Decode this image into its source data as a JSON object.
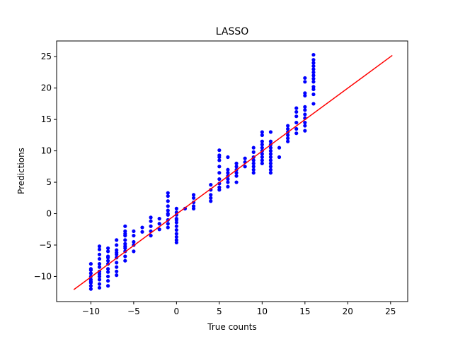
{
  "chart_data": {
    "type": "scatter",
    "title": "LASSO",
    "xlabel": "True counts",
    "ylabel": "Predictions",
    "xlim": [
      -14,
      27
    ],
    "ylim": [
      -14,
      27.5
    ],
    "x_ticks": [
      -10,
      -5,
      0,
      5,
      10,
      15,
      20,
      25
    ],
    "y_ticks": [
      -10,
      -5,
      0,
      5,
      10,
      15,
      20,
      25
    ],
    "x_tick_labels": [
      "−10",
      "−5",
      "0",
      "5",
      "10",
      "15",
      "20",
      "25"
    ],
    "y_tick_labels": [
      "−10",
      "−5",
      "0",
      "5",
      "10",
      "15",
      "20",
      "25"
    ],
    "grid": false,
    "colors": {
      "points": "#0000ff",
      "line": "#ff0000"
    },
    "reference_line": {
      "x": [
        -12,
        25.2
      ],
      "y": [
        -12.1,
        25.2
      ]
    },
    "points": [
      [
        -10,
        -8.0
      ],
      [
        -10,
        -8.8
      ],
      [
        -10,
        -9.5
      ],
      [
        -10,
        -10.0
      ],
      [
        -10,
        -10.5
      ],
      [
        -10,
        -11.0
      ],
      [
        -10,
        -11.5
      ],
      [
        -10,
        -12.0
      ],
      [
        -10,
        -9.0
      ],
      [
        -10,
        -10.8
      ],
      [
        -9,
        -5.2
      ],
      [
        -9,
        -5.7
      ],
      [
        -9,
        -6.5
      ],
      [
        -9,
        -7.2
      ],
      [
        -9,
        -8.0
      ],
      [
        -9,
        -8.5
      ],
      [
        -9,
        -9.2
      ],
      [
        -9,
        -10.0
      ],
      [
        -9,
        -10.5
      ],
      [
        -9,
        -11.2
      ],
      [
        -9,
        -11.8
      ],
      [
        -9,
        -9.6
      ],
      [
        -8,
        -5.5
      ],
      [
        -8,
        -6.0
      ],
      [
        -8,
        -6.8
      ],
      [
        -8,
        -7.5
      ],
      [
        -8,
        -8.0
      ],
      [
        -8,
        -8.8
      ],
      [
        -8,
        -9.3
      ],
      [
        -8,
        -10.0
      ],
      [
        -8,
        -10.7
      ],
      [
        -8,
        -11.5
      ],
      [
        -8,
        -7.0
      ],
      [
        -7,
        -4.2
      ],
      [
        -7,
        -5.0
      ],
      [
        -7,
        -5.8
      ],
      [
        -7,
        -6.5
      ],
      [
        -7,
        -7.0
      ],
      [
        -7,
        -7.8
      ],
      [
        -7,
        -8.5
      ],
      [
        -7,
        -9.2
      ],
      [
        -7,
        -9.8
      ],
      [
        -7,
        -6.2
      ],
      [
        -6,
        -2.0
      ],
      [
        -6,
        -2.8
      ],
      [
        -6,
        -3.5
      ],
      [
        -6,
        -4.2
      ],
      [
        -6,
        -4.8
      ],
      [
        -6,
        -5.5
      ],
      [
        -6,
        -6.0
      ],
      [
        -6,
        -6.8
      ],
      [
        -6,
        -7.5
      ],
      [
        -6,
        -3.2
      ],
      [
        -6,
        -5.2
      ],
      [
        -5,
        -2.8
      ],
      [
        -5,
        -3.5
      ],
      [
        -5,
        -4.5
      ],
      [
        -5,
        -5.0
      ],
      [
        -5,
        -6.0
      ],
      [
        -4,
        -2.2
      ],
      [
        -4,
        -2.9
      ],
      [
        -3,
        -0.6
      ],
      [
        -3,
        -1.2
      ],
      [
        -3,
        -2.0
      ],
      [
        -3,
        -2.8
      ],
      [
        -3,
        -3.5
      ],
      [
        -2,
        -0.8
      ],
      [
        -2,
        -1.6
      ],
      [
        -2,
        -2.5
      ],
      [
        -1,
        3.3
      ],
      [
        -1,
        2.8
      ],
      [
        -1,
        2.0
      ],
      [
        -1,
        1.2
      ],
      [
        -1,
        0.5
      ],
      [
        -1,
        -0.2
      ],
      [
        -1,
        -1.0
      ],
      [
        -1,
        -1.6
      ],
      [
        -1,
        -2.2
      ],
      [
        -1,
        0.0
      ],
      [
        0,
        0.8
      ],
      [
        0,
        0.2
      ],
      [
        0,
        -0.2
      ],
      [
        0,
        -0.8
      ],
      [
        0,
        -1.4
      ],
      [
        0,
        -2.0
      ],
      [
        0,
        -2.6
      ],
      [
        0,
        -3.2
      ],
      [
        0,
        -3.7
      ],
      [
        0,
        -4.2
      ],
      [
        0,
        -4.6
      ],
      [
        0,
        -1.0
      ],
      [
        1,
        0.8
      ],
      [
        2,
        3.0
      ],
      [
        2,
        2.5
      ],
      [
        2,
        1.8
      ],
      [
        2,
        1.2
      ],
      [
        2,
        0.8
      ],
      [
        4,
        4.6
      ],
      [
        4,
        3.8
      ],
      [
        4,
        3.0
      ],
      [
        4,
        2.5
      ],
      [
        4,
        2.0
      ],
      [
        5,
        10.1
      ],
      [
        5,
        9.3
      ],
      [
        5,
        8.5
      ],
      [
        5,
        7.5
      ],
      [
        5,
        6.5
      ],
      [
        5,
        5.5
      ],
      [
        5,
        4.8
      ],
      [
        5,
        4.2
      ],
      [
        5,
        3.8
      ],
      [
        5,
        9.0
      ],
      [
        6,
        9.0
      ],
      [
        6,
        7.0
      ],
      [
        6,
        6.5
      ],
      [
        6,
        6.0
      ],
      [
        6,
        5.5
      ],
      [
        6,
        5.0
      ],
      [
        6,
        4.3
      ],
      [
        7,
        8.0
      ],
      [
        7,
        7.5
      ],
      [
        7,
        7.0
      ],
      [
        7,
        6.5
      ],
      [
        7,
        6.0
      ],
      [
        7,
        5.0
      ],
      [
        8,
        8.8
      ],
      [
        8,
        8.2
      ],
      [
        8,
        7.5
      ],
      [
        9,
        10.5
      ],
      [
        9,
        9.8
      ],
      [
        9,
        9.0
      ],
      [
        9,
        8.5
      ],
      [
        9,
        8.0
      ],
      [
        9,
        7.5
      ],
      [
        9,
        7.0
      ],
      [
        9,
        6.5
      ],
      [
        10,
        13.0
      ],
      [
        10,
        12.5
      ],
      [
        10,
        11.5
      ],
      [
        10,
        11.0
      ],
      [
        10,
        10.5
      ],
      [
        10,
        10.0
      ],
      [
        10,
        9.5
      ],
      [
        10,
        9.0
      ],
      [
        10,
        8.5
      ],
      [
        10,
        8.0
      ],
      [
        11,
        13.0
      ],
      [
        11,
        11.5
      ],
      [
        11,
        11.0
      ],
      [
        11,
        10.5
      ],
      [
        11,
        10.0
      ],
      [
        11,
        9.5
      ],
      [
        11,
        9.0
      ],
      [
        11,
        8.5
      ],
      [
        11,
        8.0
      ],
      [
        11,
        7.5
      ],
      [
        11,
        7.0
      ],
      [
        11,
        6.5
      ],
      [
        12,
        10.5
      ],
      [
        12,
        9.0
      ],
      [
        13,
        14.0
      ],
      [
        13,
        13.5
      ],
      [
        13,
        13.0
      ],
      [
        13,
        12.5
      ],
      [
        13,
        12.0
      ],
      [
        13,
        11.5
      ],
      [
        14,
        16.8
      ],
      [
        14,
        16.2
      ],
      [
        14,
        15.5
      ],
      [
        14,
        14.5
      ],
      [
        14,
        13.5
      ],
      [
        14,
        12.8
      ],
      [
        15,
        21.6
      ],
      [
        15,
        21.0
      ],
      [
        15,
        19.2
      ],
      [
        15,
        18.8
      ],
      [
        15,
        17.0
      ],
      [
        15,
        16.5
      ],
      [
        15,
        15.8
      ],
      [
        15,
        15.2
      ],
      [
        15,
        14.5
      ],
      [
        15,
        14.0
      ],
      [
        15,
        13.2
      ],
      [
        16,
        25.3
      ],
      [
        16,
        24.5
      ],
      [
        16,
        24.0
      ],
      [
        16,
        23.5
      ],
      [
        16,
        23.0
      ],
      [
        16,
        22.5
      ],
      [
        16,
        22.0
      ],
      [
        16,
        21.5
      ],
      [
        16,
        21.0
      ],
      [
        16,
        20.2
      ],
      [
        16,
        19.8
      ],
      [
        16,
        19.0
      ],
      [
        16,
        17.5
      ]
    ]
  }
}
